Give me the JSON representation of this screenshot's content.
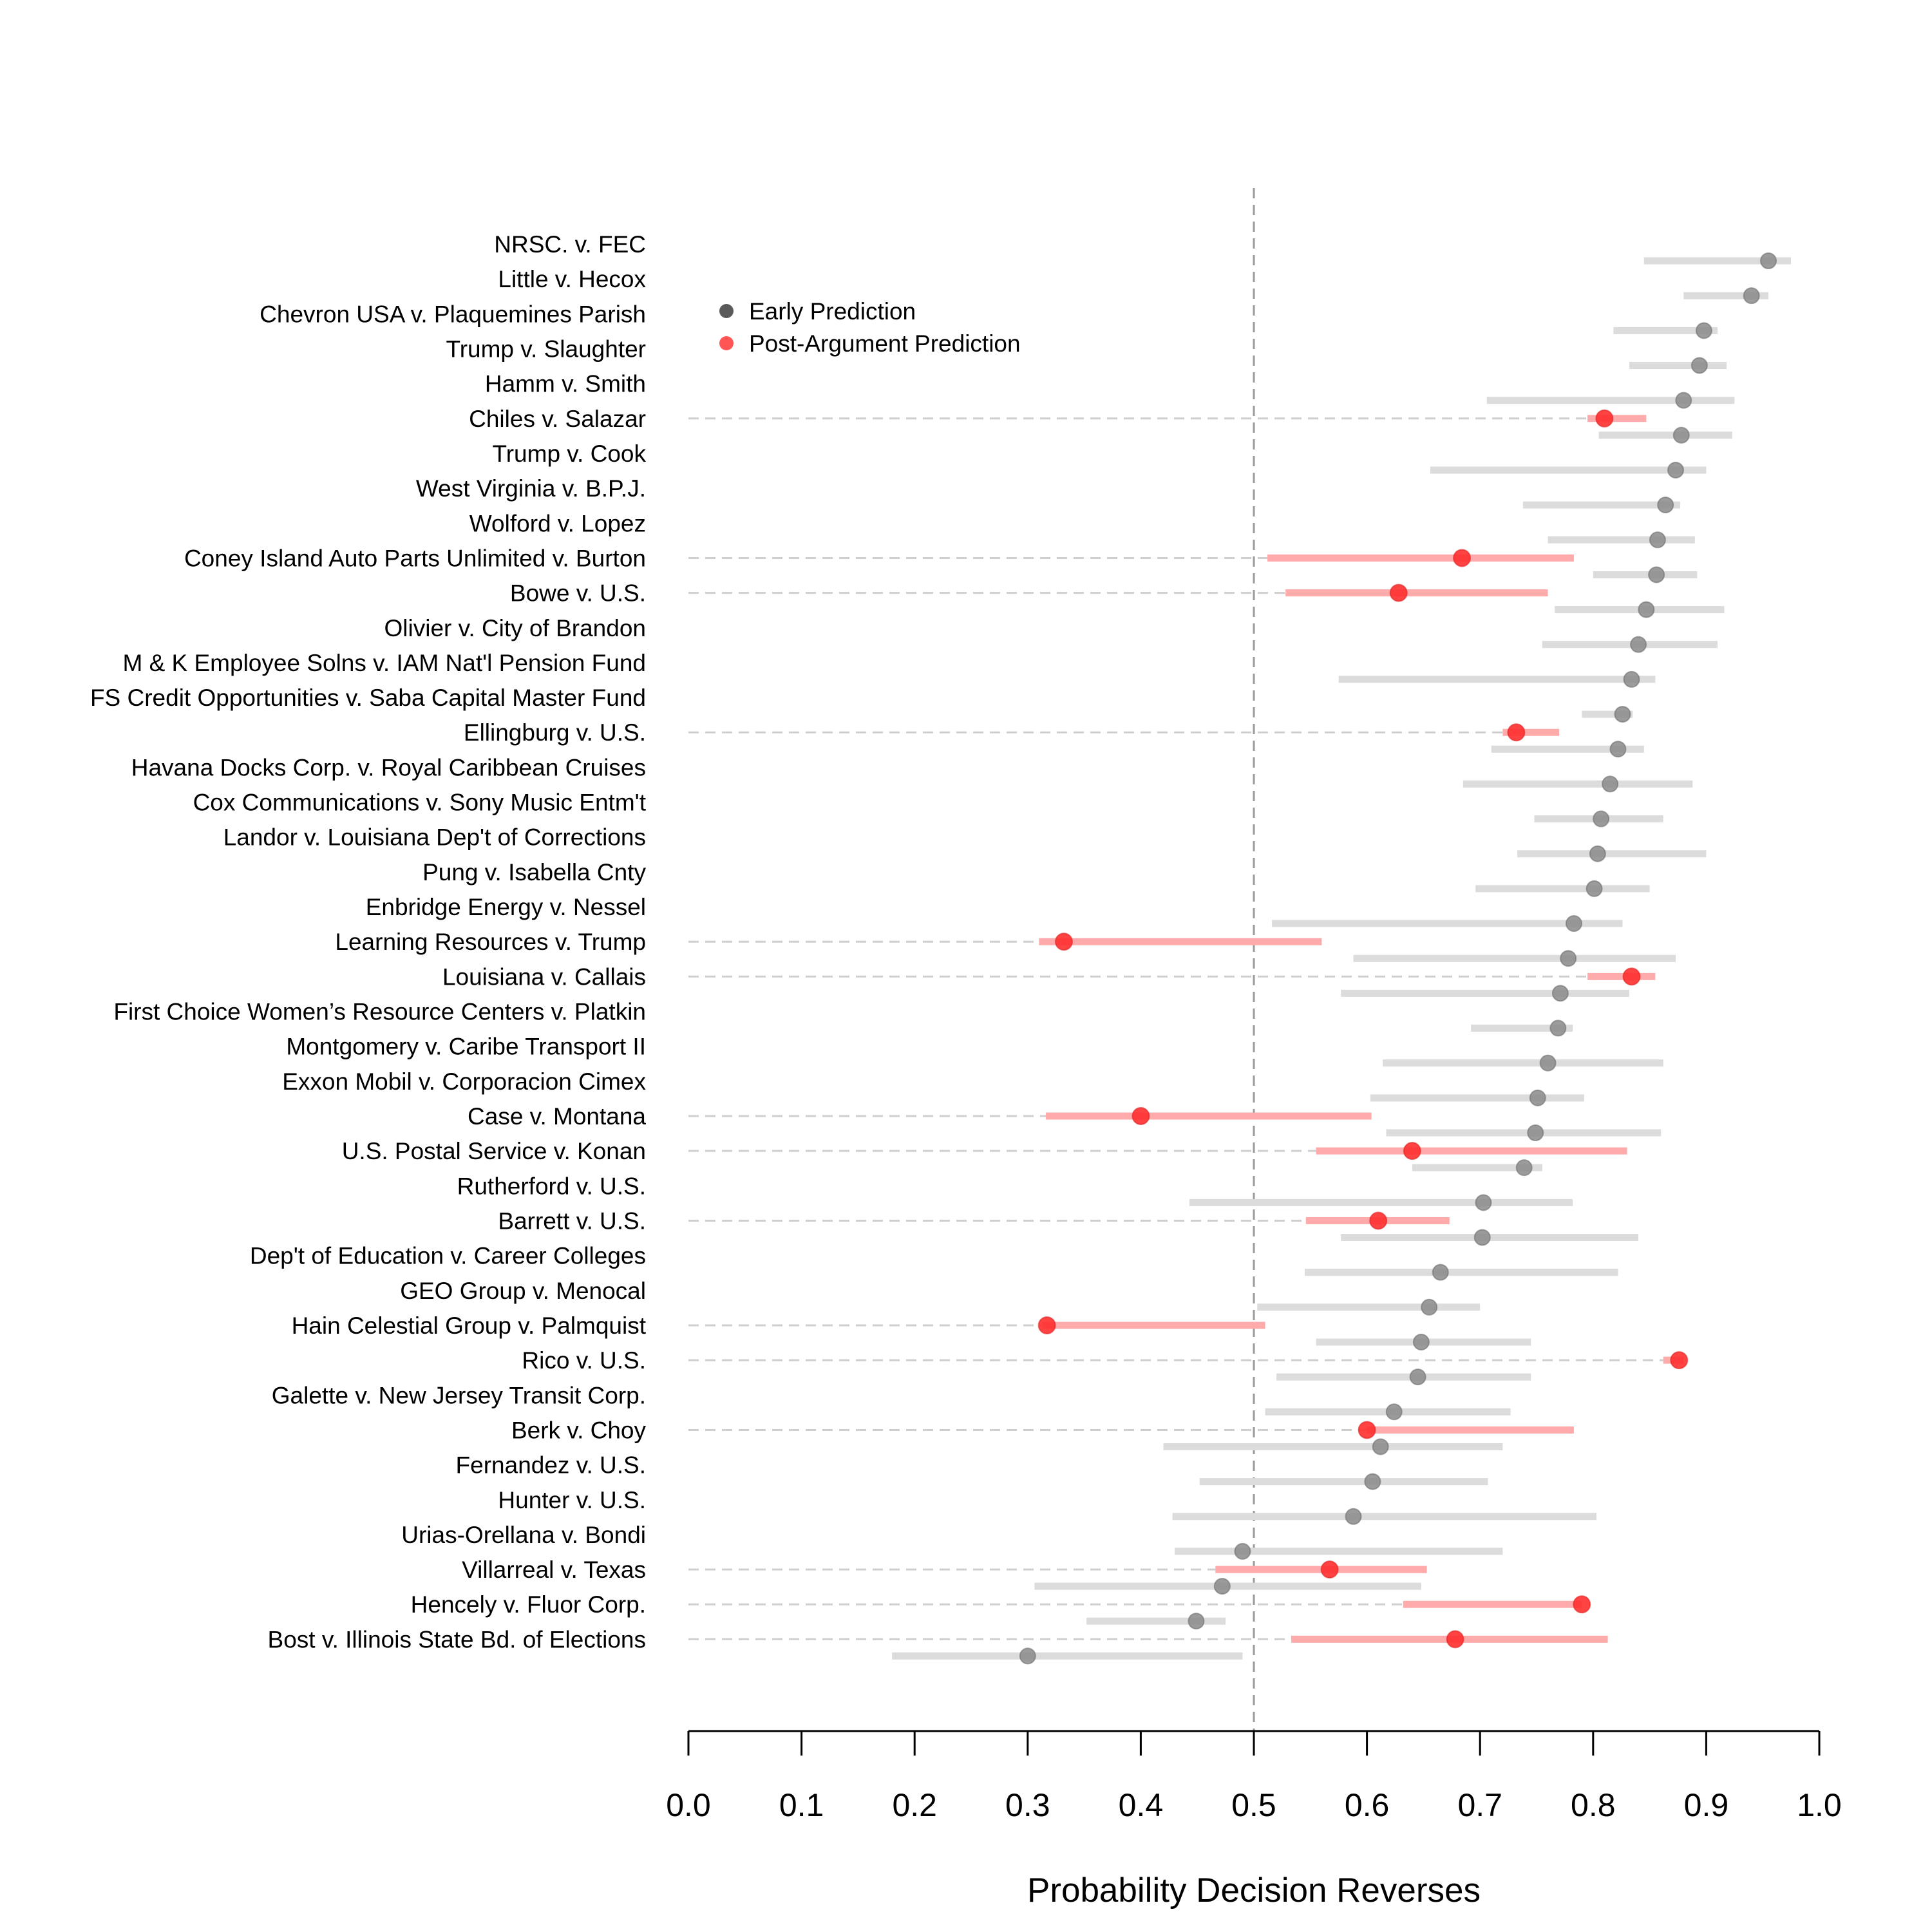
{
  "chart_data": {
    "type": "scatter",
    "xlabel": "Probability Decision Reverses",
    "xlim": [
      0,
      1
    ],
    "x_ticks": [
      "0.0",
      "0.1",
      "0.2",
      "0.3",
      "0.4",
      "0.5",
      "0.6",
      "0.7",
      "0.8",
      "0.9",
      "1.0"
    ],
    "reference_line": 0.5,
    "legend": {
      "placement": "top-left",
      "items": [
        {
          "label": "Early Prediction",
          "color": "#5a5a5a"
        },
        {
          "label": "Post-Argument Prediction",
          "color": "#ff5555"
        }
      ]
    },
    "colors": {
      "early_point": "#8a8a8a",
      "early_interval": "#dcdcdc",
      "post_point": "#ff2e2e",
      "post_interval": "#ffabab",
      "guide": "#cfcfcf",
      "reference": "#9a9a9a"
    },
    "cases": [
      {
        "name": "NRSC. v. FEC",
        "early": 0.955,
        "early_ci": [
          0.845,
          0.975
        ]
      },
      {
        "name": "Little v. Hecox",
        "early": 0.94,
        "early_ci": [
          0.88,
          0.955
        ]
      },
      {
        "name": "Chevron USA v. Plaquemines Parish",
        "early": 0.898,
        "early_ci": [
          0.818,
          0.91
        ]
      },
      {
        "name": "Trump v. Slaughter",
        "early": 0.894,
        "early_ci": [
          0.832,
          0.918
        ]
      },
      {
        "name": "Hamm v. Smith",
        "early": 0.88,
        "early_ci": [
          0.706,
          0.925
        ]
      },
      {
        "name": "Chiles v. Salazar",
        "early": 0.878,
        "early_ci": [
          0.805,
          0.923
        ],
        "post": 0.81,
        "post_ci": [
          0.795,
          0.847
        ]
      },
      {
        "name": "Trump v. Cook",
        "early": 0.873,
        "early_ci": [
          0.656,
          0.9
        ]
      },
      {
        "name": "West Virginia v. B.P.J.",
        "early": 0.864,
        "early_ci": [
          0.738,
          0.877
        ]
      },
      {
        "name": "Wolford v. Lopez",
        "early": 0.857,
        "early_ci": [
          0.76,
          0.89
        ]
      },
      {
        "name": "Coney Island Auto Parts Unlimited v. Burton",
        "early": 0.856,
        "early_ci": [
          0.8,
          0.892
        ],
        "post": 0.684,
        "post_ci": [
          0.512,
          0.783
        ]
      },
      {
        "name": "Bowe v. U.S.",
        "early": 0.847,
        "early_ci": [
          0.766,
          0.916
        ],
        "post": 0.628,
        "post_ci": [
          0.528,
          0.76
        ]
      },
      {
        "name": "Olivier v. City of Brandon",
        "early": 0.84,
        "early_ci": [
          0.755,
          0.91
        ]
      },
      {
        "name": "M & K Employee Solns v. IAM Nat'l Pension Fund",
        "early": 0.834,
        "early_ci": [
          0.575,
          0.855
        ]
      },
      {
        "name": "FS Credit Opportunities v. Saba Capital Master Fund",
        "early": 0.826,
        "early_ci": [
          0.79,
          0.835
        ]
      },
      {
        "name": "Ellingburg v. U.S.",
        "early": 0.822,
        "early_ci": [
          0.71,
          0.845
        ],
        "post": 0.732,
        "post_ci": [
          0.72,
          0.77
        ]
      },
      {
        "name": "Havana Docks Corp. v. Royal Caribbean Cruises",
        "early": 0.815,
        "early_ci": [
          0.685,
          0.888
        ]
      },
      {
        "name": "Cox Communications v. Sony Music Entm't",
        "early": 0.807,
        "early_ci": [
          0.748,
          0.862
        ]
      },
      {
        "name": "Landor v. Louisiana Dep't of Corrections",
        "early": 0.804,
        "early_ci": [
          0.733,
          0.9
        ]
      },
      {
        "name": "Pung v. Isabella Cnty",
        "early": 0.801,
        "early_ci": [
          0.696,
          0.85
        ]
      },
      {
        "name": "Enbridge Energy v. Nessel",
        "early": 0.783,
        "early_ci": [
          0.516,
          0.826
        ]
      },
      {
        "name": "Learning Resources v. Trump",
        "early": 0.778,
        "early_ci": [
          0.588,
          0.873
        ],
        "post": 0.332,
        "post_ci": [
          0.31,
          0.56
        ]
      },
      {
        "name": "Louisiana v. Callais",
        "early": 0.771,
        "early_ci": [
          0.577,
          0.832
        ],
        "post": 0.834,
        "post_ci": [
          0.795,
          0.855
        ]
      },
      {
        "name": "First Choice Women’s Resource Centers v. Platkin",
        "early": 0.769,
        "early_ci": [
          0.692,
          0.782
        ]
      },
      {
        "name": "Montgomery v. Caribe Transport II",
        "early": 0.76,
        "early_ci": [
          0.614,
          0.862
        ]
      },
      {
        "name": "Exxon Mobil v. Corporacion Cimex",
        "early": 0.751,
        "early_ci": [
          0.603,
          0.792
        ]
      },
      {
        "name": "Case v. Montana",
        "early": 0.749,
        "early_ci": [
          0.617,
          0.86
        ],
        "post": 0.4,
        "post_ci": [
          0.316,
          0.604
        ]
      },
      {
        "name": "U.S. Postal Service v. Konan",
        "early": 0.739,
        "early_ci": [
          0.64,
          0.755
        ],
        "post": 0.64,
        "post_ci": [
          0.555,
          0.83
        ]
      },
      {
        "name": "Rutherford v. U.S.",
        "early": 0.703,
        "early_ci": [
          0.443,
          0.782
        ]
      },
      {
        "name": "Barrett v. U.S.",
        "early": 0.702,
        "early_ci": [
          0.577,
          0.84
        ],
        "post": 0.61,
        "post_ci": [
          0.546,
          0.673
        ]
      },
      {
        "name": "Dep't of Education v. Career Colleges",
        "early": 0.665,
        "early_ci": [
          0.545,
          0.822
        ]
      },
      {
        "name": "GEO Group v. Menocal",
        "early": 0.655,
        "early_ci": [
          0.503,
          0.7
        ]
      },
      {
        "name": "Hain Celestial Group v. Palmquist",
        "early": 0.648,
        "early_ci": [
          0.555,
          0.745
        ],
        "post": 0.317,
        "post_ci": [
          0.313,
          0.51
        ]
      },
      {
        "name": "Rico v. U.S.",
        "early": 0.645,
        "early_ci": [
          0.52,
          0.745
        ],
        "post": 0.876,
        "post_ci": [
          0.862,
          0.88
        ]
      },
      {
        "name": "Galette v. New Jersey Transit Corp.",
        "early": 0.624,
        "early_ci": [
          0.51,
          0.727
        ]
      },
      {
        "name": "Berk v. Choy",
        "early": 0.612,
        "early_ci": [
          0.42,
          0.72
        ],
        "post": 0.6,
        "post_ci": [
          0.6,
          0.783
        ]
      },
      {
        "name": "Fernandez v. U.S.",
        "early": 0.605,
        "early_ci": [
          0.452,
          0.707
        ]
      },
      {
        "name": "Hunter v. U.S.",
        "early": 0.588,
        "early_ci": [
          0.428,
          0.803
        ]
      },
      {
        "name": "Urias-Orellana v. Bondi",
        "early": 0.49,
        "early_ci": [
          0.43,
          0.72
        ]
      },
      {
        "name": "Villarreal v. Texas",
        "early": 0.472,
        "early_ci": [
          0.306,
          0.648
        ],
        "post": 0.567,
        "post_ci": [
          0.466,
          0.653
        ]
      },
      {
        "name": "Hencely v. Fluor Corp.",
        "early": 0.449,
        "early_ci": [
          0.352,
          0.475
        ],
        "post": 0.79,
        "post_ci": [
          0.632,
          0.79
        ]
      },
      {
        "name": "Bost v. Illinois State Bd. of Elections",
        "early": 0.3,
        "early_ci": [
          0.18,
          0.49
        ],
        "post": 0.678,
        "post_ci": [
          0.533,
          0.813
        ]
      }
    ]
  }
}
